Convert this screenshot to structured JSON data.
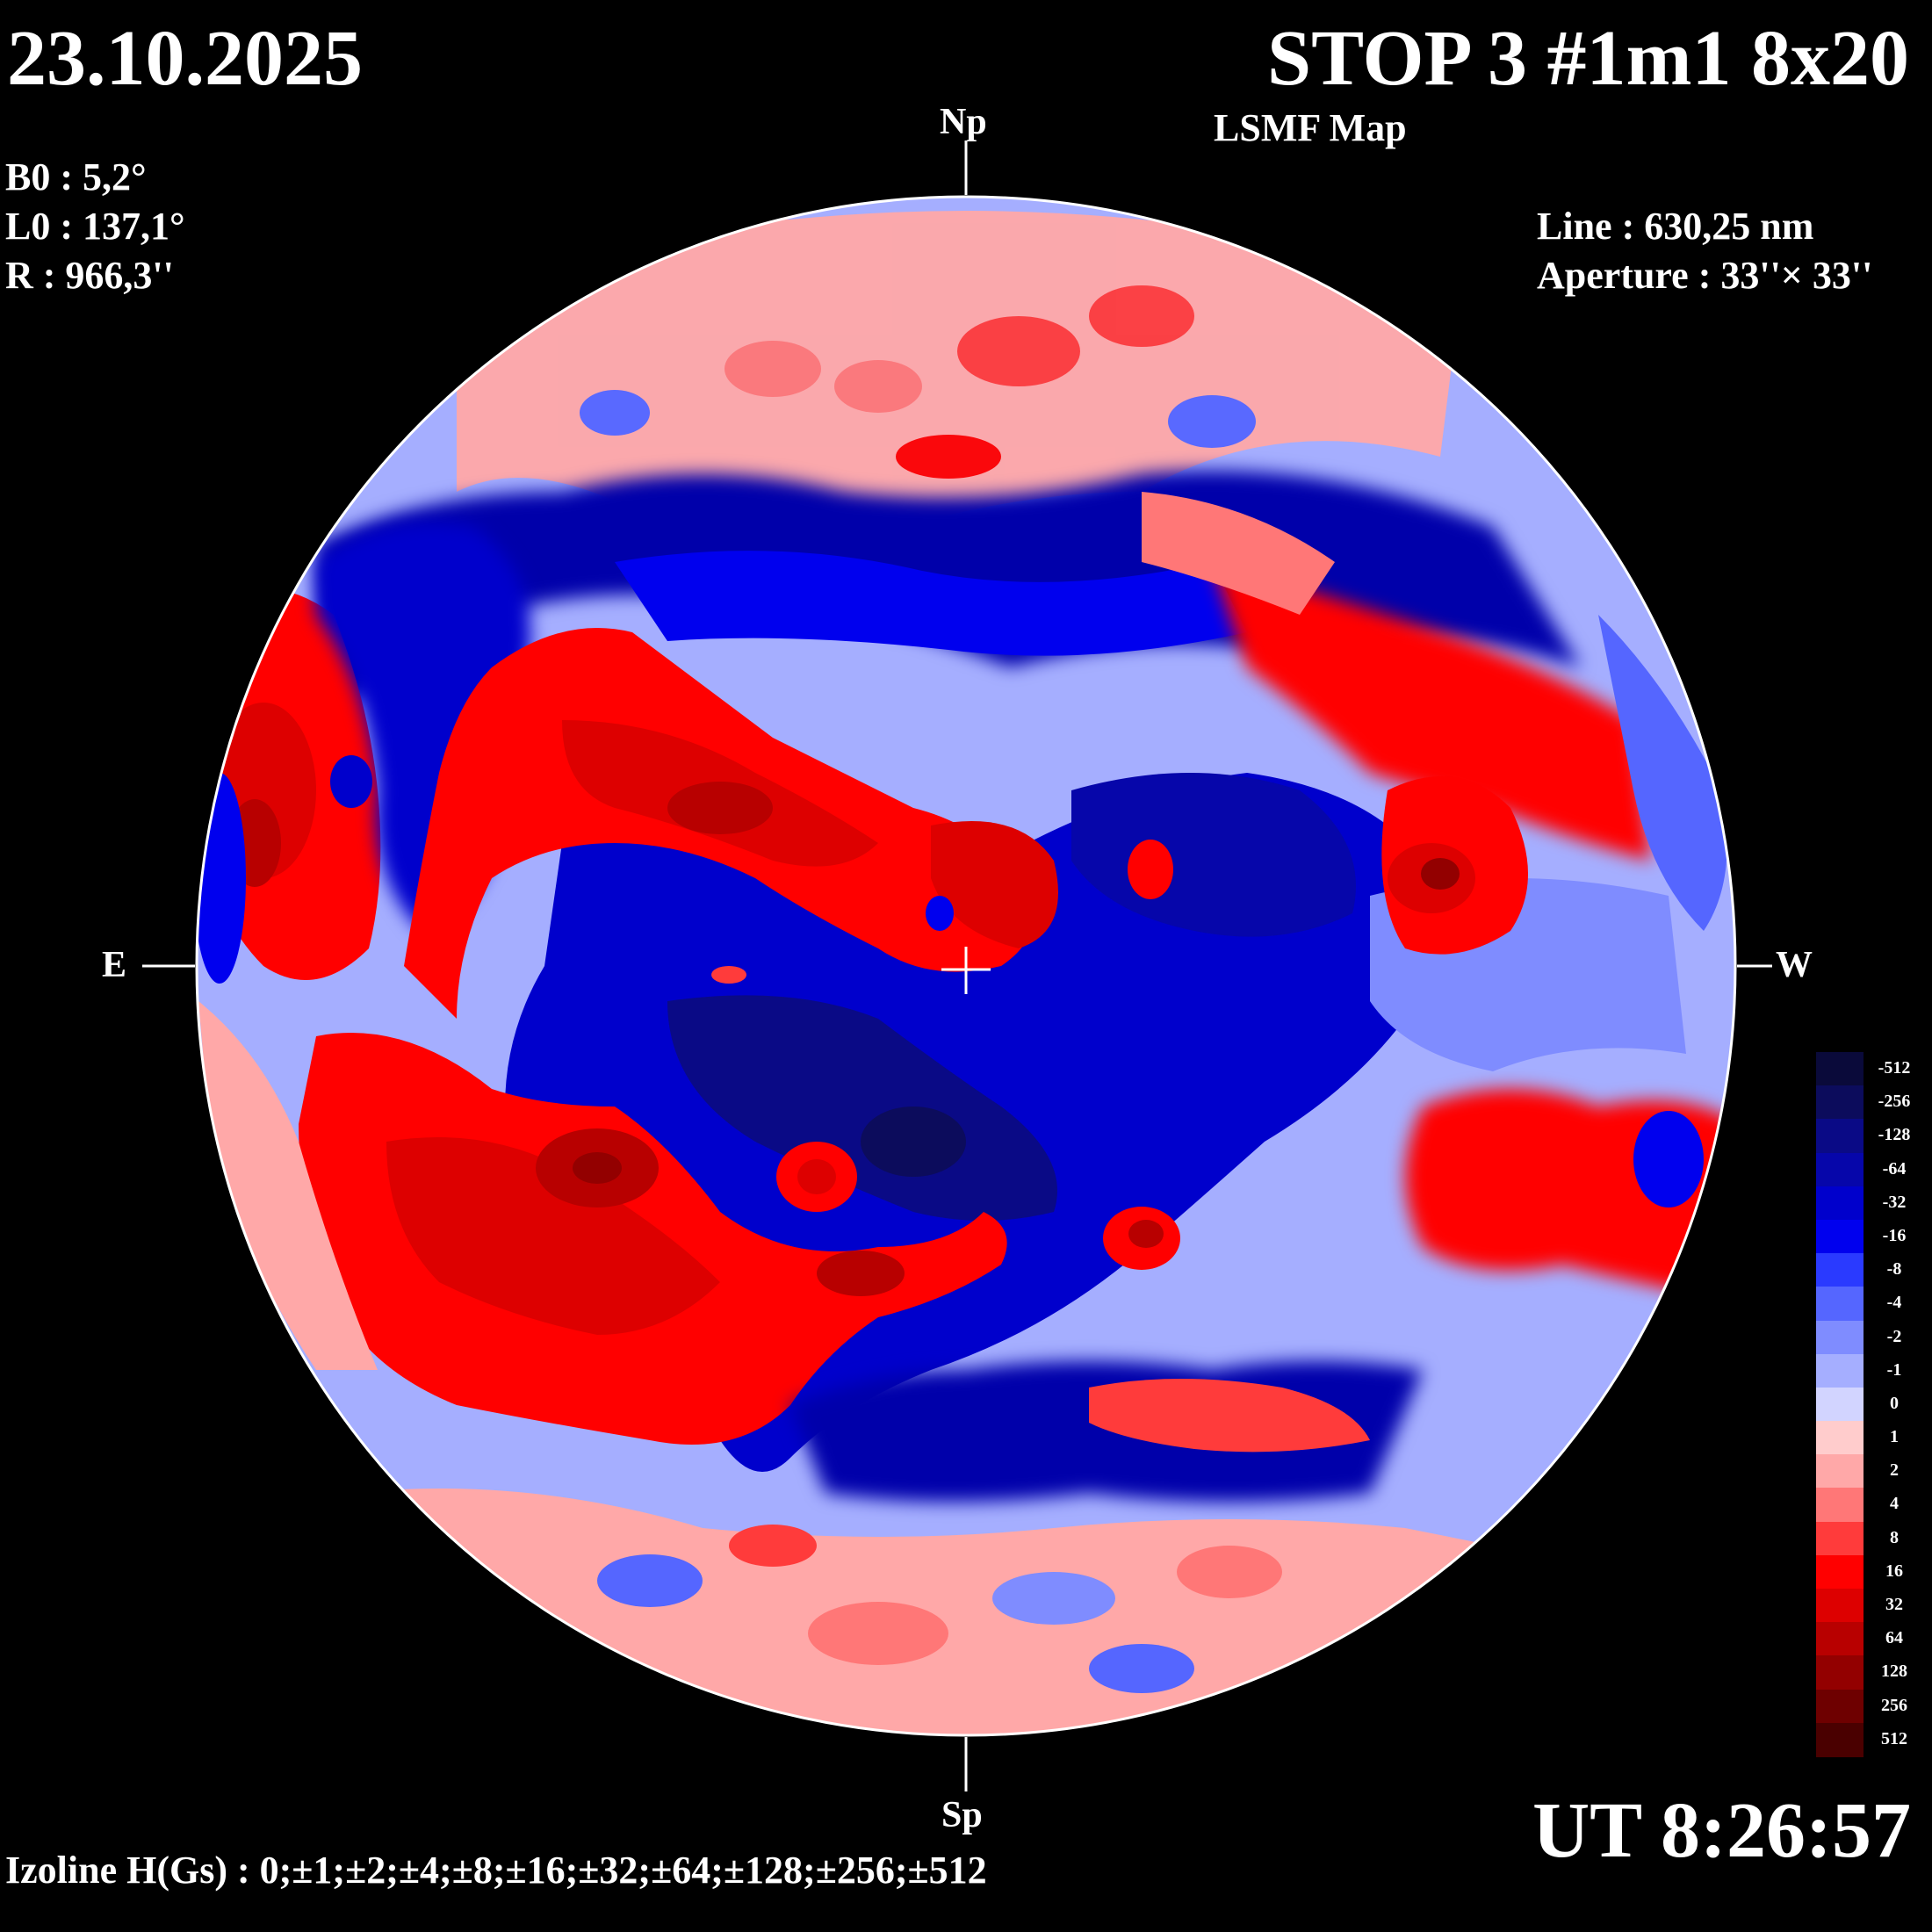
{
  "header": {
    "date": "23.10.2025",
    "title": "STOP 3 #1m1 8x20",
    "subtitle": "LSMF  Map"
  },
  "params": {
    "b0": "B0 : 5,2°",
    "l0": "L0 : 137,1°",
    "r": "R  : 966,3''"
  },
  "instrument": {
    "line": "Line :  630,25 nm",
    "aperture": "Aperture : 33''× 33''"
  },
  "directions": {
    "north": "Np",
    "south": "Sp",
    "east": "E",
    "west": "W"
  },
  "time": "UT 8:26:57",
  "izoline": "Izoline H(Gs) : 0;±1;±2;±4;±8;±16;±32;±64;±128;±256;±512",
  "legend": {
    "levels": [
      {
        "label": "-512",
        "color": "#0a0a3a"
      },
      {
        "label": "-256",
        "color": "#0c0c5c"
      },
      {
        "label": "-128",
        "color": "#0a0a86"
      },
      {
        "label": "-64",
        "color": "#0606aa"
      },
      {
        "label": "-32",
        "color": "#0000cc"
      },
      {
        "label": "-16",
        "color": "#0000ee"
      },
      {
        "label": "-8",
        "color": "#2a3aff"
      },
      {
        "label": "-4",
        "color": "#5566ff"
      },
      {
        "label": "-2",
        "color": "#7f8cff"
      },
      {
        "label": "-1",
        "color": "#a5aeff"
      },
      {
        "label": "0",
        "color": "#d2d4ff"
      },
      {
        "label": "1",
        "color": "#ffcccc"
      },
      {
        "label": "2",
        "color": "#ffa8a8"
      },
      {
        "label": "4",
        "color": "#ff7777"
      },
      {
        "label": "8",
        "color": "#ff3b3b"
      },
      {
        "label": "16",
        "color": "#ff0000"
      },
      {
        "label": "32",
        "color": "#dd0000"
      },
      {
        "label": "64",
        "color": "#b80000"
      },
      {
        "label": "128",
        "color": "#930000"
      },
      {
        "label": "256",
        "color": "#6e0000"
      },
      {
        "label": "512",
        "color": "#4a0000"
      }
    ]
  }
}
